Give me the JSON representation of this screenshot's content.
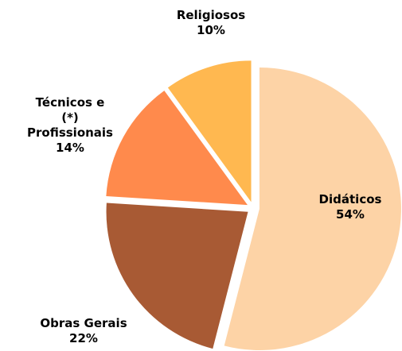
{
  "chart_data": {
    "type": "pie",
    "categories": [
      "Didáticos",
      "Obras Gerais",
      "Técnicos e\n(*)\nProfissionais",
      "Religiosos"
    ],
    "values": [
      54,
      22,
      14,
      10
    ],
    "value_labels": [
      "54%",
      "22%",
      "14%",
      "10%"
    ],
    "colors": [
      "#fdd3a6",
      "#a85a34",
      "#ff8a4c",
      "#ffb850"
    ]
  }
}
